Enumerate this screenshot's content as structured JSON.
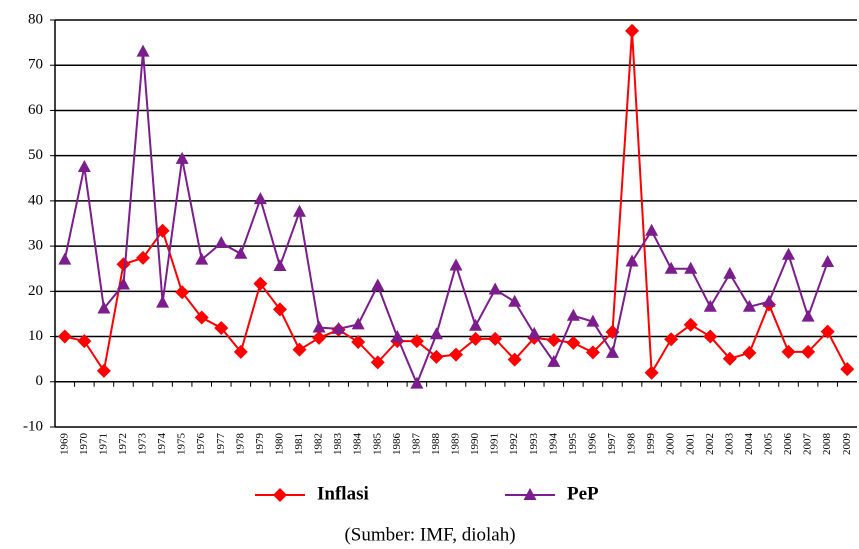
{
  "chart_data": {
    "type": "line",
    "categories": [
      "1969",
      "1970",
      "1971",
      "1972",
      "1973",
      "1974",
      "1975",
      "1976",
      "1977",
      "1978",
      "1979",
      "1980",
      "1981",
      "1982",
      "1983",
      "1984",
      "1985",
      "1986",
      "1987",
      "1988",
      "1989",
      "1990",
      "1991",
      "1992",
      "1993",
      "1994",
      "1995",
      "1996",
      "1997",
      "1998",
      "1999",
      "2000",
      "2001",
      "2002",
      "2003",
      "2004",
      "2005",
      "2006",
      "2007",
      "2008",
      "2009"
    ],
    "series": [
      {
        "name": "Inflasi",
        "color": "#ff0000",
        "marker": "diamond",
        "values": [
          10,
          9,
          2.4,
          26,
          27.4,
          33.4,
          19.8,
          14.2,
          11.9,
          6.6,
          21.7,
          16,
          7.1,
          9.7,
          11.5,
          8.8,
          4.3,
          9,
          9,
          5.5,
          6,
          9.5,
          9.5,
          4.9,
          9.7,
          9.2,
          8.6,
          6.5,
          11,
          77.6,
          2,
          9.4,
          12.6,
          10,
          5.1,
          6.4,
          17.1,
          6.6,
          6.6,
          11.1,
          2.8
        ]
      },
      {
        "name": "PeP",
        "color": "#7b1d8c",
        "marker": "triangle",
        "values": [
          27,
          47.5,
          16.2,
          21.5,
          73,
          17.5,
          49.3,
          27,
          30.7,
          28.3,
          40.4,
          25.6,
          37.6,
          12,
          11.7,
          12.7,
          21.3,
          9.9,
          -0.4,
          10.5,
          25.7,
          12.4,
          20.4,
          17.7,
          10.6,
          4.4,
          14.6,
          13.3,
          6.4,
          26.6,
          33.4,
          25,
          25,
          16.6,
          23.9,
          16.6,
          17.7,
          28.1,
          14.4,
          26.5,
          null
        ]
      }
    ],
    "ylim": [
      -10,
      80
    ],
    "yticks": [
      -10,
      0,
      10,
      20,
      30,
      40,
      50,
      60,
      70,
      80
    ],
    "grid": true,
    "source": "(Sumber: IMF, diolah)"
  }
}
